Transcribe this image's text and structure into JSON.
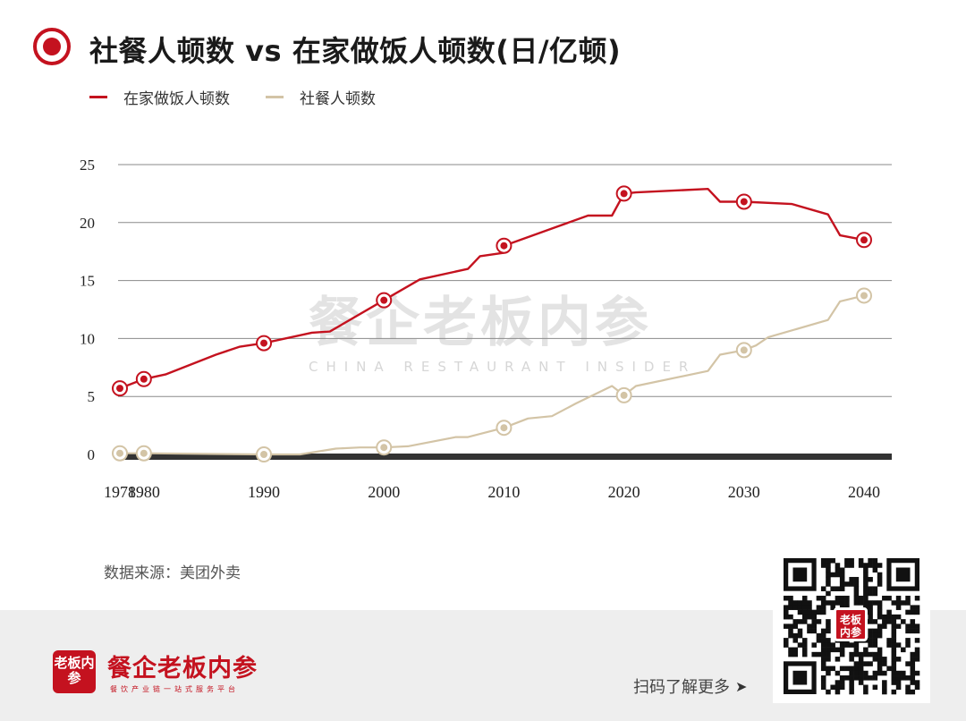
{
  "title": "社餐人顿数 vs 在家做饭人顿数(日/亿顿)",
  "legend": [
    {
      "label": "在家做饭人顿数",
      "color": "#c4121f"
    },
    {
      "label": "社餐人顿数",
      "color": "#d3c4a6"
    }
  ],
  "source": "数据来源：美团外卖",
  "watermark": {
    "cn": "餐企老板内参",
    "en": "CHINA RESTAURANT INSIDER"
  },
  "brand": {
    "logo_text": "老板内参",
    "name": "餐企老板内参",
    "tagline": "餐饮产业链一站式服务平台"
  },
  "qr": {
    "logo_text": "老板内参",
    "caption": "扫码了解更多",
    "arrow": "➤"
  },
  "colors": {
    "accent": "#c4121f",
    "beige": "#d3c4a6",
    "baseline": "#333333"
  },
  "chart_data": {
    "type": "line",
    "ylim": [
      0,
      25
    ],
    "yticks": [
      0,
      5,
      10,
      15,
      20,
      25
    ],
    "xlim": [
      1978,
      2040
    ],
    "xticks": [
      1978,
      1980,
      1990,
      2000,
      2010,
      2020,
      2030,
      2040
    ],
    "grid": true,
    "legend_position": "top-left",
    "series": [
      {
        "name": "在家做饭人顿数",
        "color": "#c4121f",
        "points": [
          [
            1978,
            5.7
          ],
          [
            1980,
            6.5
          ],
          [
            1981.8,
            6.9
          ],
          [
            1986,
            8.6
          ],
          [
            1988,
            9.3
          ],
          [
            1990,
            9.6
          ],
          [
            1994,
            10.5
          ],
          [
            1995.5,
            10.6
          ],
          [
            2000,
            13.3
          ],
          [
            2003,
            15.1
          ],
          [
            2007,
            16.0
          ],
          [
            2008,
            17.1
          ],
          [
            2010,
            17.4
          ],
          [
            2010,
            18.0
          ],
          [
            2017,
            20.6
          ],
          [
            2019,
            20.6
          ],
          [
            2020,
            22.5
          ],
          [
            2021,
            22.6
          ],
          [
            2027,
            22.9
          ],
          [
            2028,
            21.8
          ],
          [
            2030,
            21.8
          ],
          [
            2034,
            21.6
          ],
          [
            2037,
            20.7
          ],
          [
            2038,
            18.9
          ],
          [
            2040,
            18.5
          ]
        ],
        "markers": [
          [
            1978,
            5.7
          ],
          [
            1980,
            6.5
          ],
          [
            1990,
            9.6
          ],
          [
            2000,
            13.3
          ],
          [
            2010,
            18.0
          ],
          [
            2020,
            22.5
          ],
          [
            2030,
            21.8
          ],
          [
            2040,
            18.5
          ]
        ]
      },
      {
        "name": "社餐人顿数",
        "color": "#d3c4a6",
        "points": [
          [
            1978,
            0.1
          ],
          [
            1980,
            0.1
          ],
          [
            1990,
            0.0
          ],
          [
            1993,
            0.0
          ],
          [
            1996,
            0.5
          ],
          [
            1998,
            0.6
          ],
          [
            2000,
            0.6
          ],
          [
            2002,
            0.7
          ],
          [
            2006,
            1.5
          ],
          [
            2007,
            1.5
          ],
          [
            2010,
            2.3
          ],
          [
            2012,
            3.1
          ],
          [
            2014,
            3.3
          ],
          [
            2016,
            4.4
          ],
          [
            2019,
            5.9
          ],
          [
            2020,
            5.1
          ],
          [
            2021,
            5.9
          ],
          [
            2027,
            7.2
          ],
          [
            2028,
            8.6
          ],
          [
            2030,
            9.0
          ],
          [
            2031,
            9.4
          ],
          [
            2032,
            10.1
          ],
          [
            2037,
            11.6
          ],
          [
            2038,
            13.2
          ],
          [
            2040,
            13.7
          ]
        ],
        "markers": [
          [
            1978,
            0.1
          ],
          [
            1980,
            0.1
          ],
          [
            1990,
            0.0
          ],
          [
            2000,
            0.6
          ],
          [
            2010,
            2.3
          ],
          [
            2020,
            5.1
          ],
          [
            2030,
            9.0
          ],
          [
            2040,
            13.7
          ]
        ]
      }
    ]
  }
}
